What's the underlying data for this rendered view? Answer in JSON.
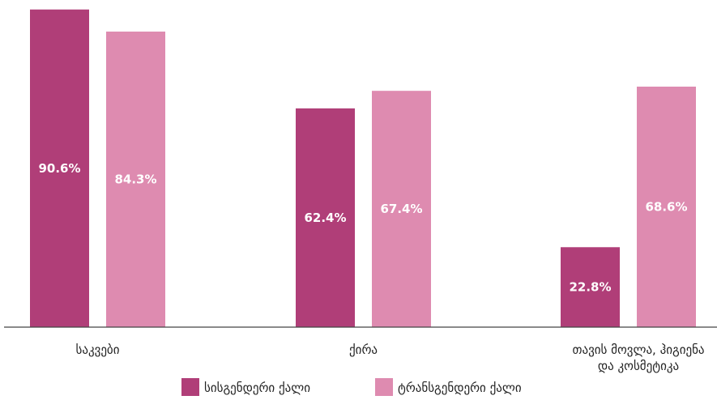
{
  "chart_data": {
    "type": "bar",
    "categories": [
      [
        "საკვები"
      ],
      [
        "ქირა"
      ],
      [
        "თავის მოვლა, ჰიგიენა",
        "და კოსმეტიკა"
      ]
    ],
    "series": [
      {
        "name": "სისგენდერი ქალი",
        "color": "#b03e78",
        "values": [
          90.6,
          62.4,
          22.8
        ]
      },
      {
        "name": "ტრანსგენდერი ქალი",
        "color": "#de8bb0",
        "values": [
          84.3,
          67.4,
          68.6
        ]
      }
    ],
    "value_labels": [
      [
        "90.6%",
        "62.4%",
        "22.8%"
      ],
      [
        "84.3%",
        "67.4%",
        "68.6%"
      ]
    ],
    "ylim": [
      0,
      100
    ],
    "grid": false,
    "legend_position": "bottom-center"
  }
}
